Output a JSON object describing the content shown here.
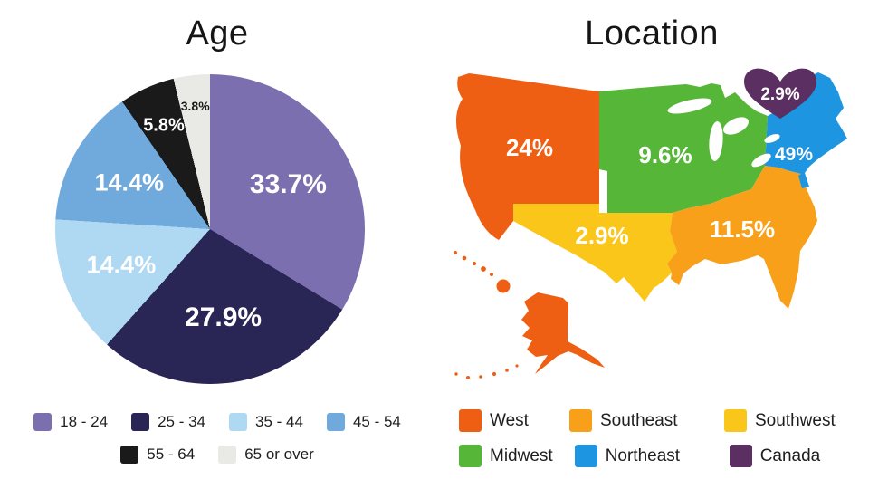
{
  "chart_data": [
    {
      "type": "pie",
      "title": "Age",
      "categories": [
        "18 - 24",
        "25 - 34",
        "35 - 44",
        "45 - 54",
        "55 - 64",
        "65 or over"
      ],
      "values": [
        33.7,
        27.9,
        14.4,
        14.4,
        5.8,
        3.8
      ],
      "labels": [
        "33.7%",
        "27.9%",
        "14.4%",
        "14.4%",
        "5.8%",
        "3.8%"
      ],
      "unit": "%",
      "colors": [
        "#7C6FB0",
        "#292554",
        "#AFD8F3",
        "#70AADD",
        "#1A1A1A",
        "#E9E9E5"
      ],
      "label_colors": [
        "#ffffff",
        "#ffffff",
        "#ffffff",
        "#ffffff",
        "#ffffff",
        "#1c1c1c"
      ],
      "start_angle_deg": 0,
      "direction": "clockwise",
      "grid": false,
      "legend_position": "bottom"
    },
    {
      "type": "choropleth-map",
      "title": "Location",
      "map": "united-states-regions-plus-canada-heart",
      "categories": [
        "West",
        "Southeast",
        "Southwest",
        "Midwest",
        "Northeast",
        "Canada"
      ],
      "values": [
        24,
        11.5,
        2.9,
        9.6,
        49,
        2.9
      ],
      "labels": [
        "24%",
        "11.5%",
        "2.9%",
        "9.6%",
        "49%",
        "2.9%"
      ],
      "unit": "%",
      "colors": [
        "#EE5F14",
        "#F9A01B",
        "#FAC619",
        "#55B637",
        "#1D95E1",
        "#5B2F62"
      ],
      "label_color": "#ffffff",
      "canada_marker": "heart",
      "legend_position": "bottom"
    }
  ]
}
